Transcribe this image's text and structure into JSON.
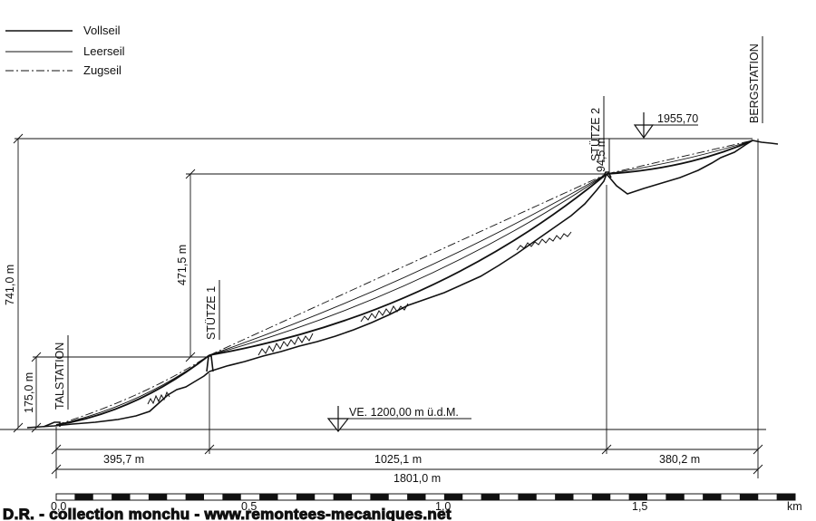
{
  "legend": {
    "items": [
      {
        "label": "Vollseil",
        "style": "solid-heavy"
      },
      {
        "label": "Leerseil",
        "style": "solid-thin"
      },
      {
        "label": "Zugseil",
        "style": "dash-dot"
      }
    ]
  },
  "stations": {
    "valley": "TALSTATION",
    "tower_1": "STÜTZE 1",
    "tower_2": "STÜTZE 2",
    "mountain": "BERGSTATION"
  },
  "elevations": {
    "summit_mark": "1955,70",
    "reference_level": "VE. 1200,00 m ü.d.M."
  },
  "vertical_dimensions": {
    "total": "741,0 m",
    "valley_to_tower_1": "175,0 m",
    "tower_1_to_tower_2": "471,5 m",
    "tower_2_to_mountain": "94,5 m"
  },
  "horizontal_dimensions": {
    "span_1": "395,7 m",
    "span_2": "1025,1 m",
    "span_3": "380,2 m",
    "total": "1801,0 m"
  },
  "scale_bar": {
    "labels": [
      "0,0",
      "0,5",
      "1,0",
      "1,5"
    ],
    "unit": "km"
  },
  "watermark": "D.R. - collection monchu - www.remontees-mecaniques.net"
}
